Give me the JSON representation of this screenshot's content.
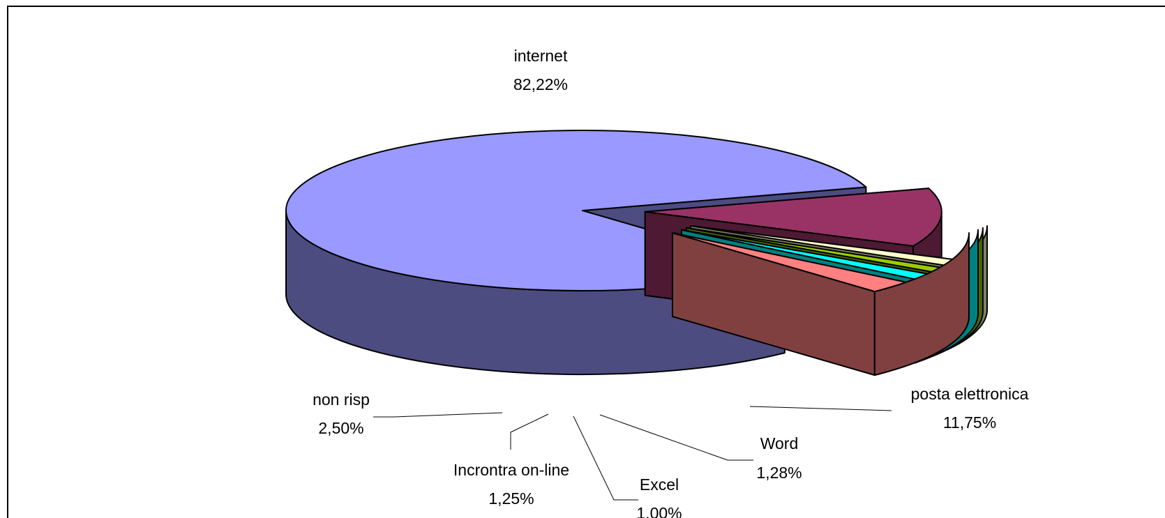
{
  "chart_data": {
    "type": "pie",
    "style": "3d-exploded",
    "title": "",
    "slices": [
      {
        "name": "internet",
        "label": "82,22%",
        "value": 82.22,
        "top_color": "#9999FF",
        "side_color": "#4C4C80"
      },
      {
        "name": "posta elettronica",
        "label": "11,75%",
        "value": 11.75,
        "top_color": "#993366",
        "side_color": "#4D1933"
      },
      {
        "name": "Word",
        "label": "1,28%",
        "value": 1.28,
        "top_color": "#FFFFCC",
        "side_color": "#808066"
      },
      {
        "name": "Excel",
        "label": "1,00%",
        "value": 1.0,
        "top_color": "#99CC00",
        "side_color": "#4D6600"
      },
      {
        "name": "Incrontra on-line",
        "label": "1,25%",
        "value": 1.25,
        "top_color": "#00FFFF",
        "side_color": "#008080"
      },
      {
        "name": "non risp",
        "label": "2,50%",
        "value": 2.5,
        "top_color": "#FF8080",
        "side_color": "#804040"
      }
    ]
  }
}
